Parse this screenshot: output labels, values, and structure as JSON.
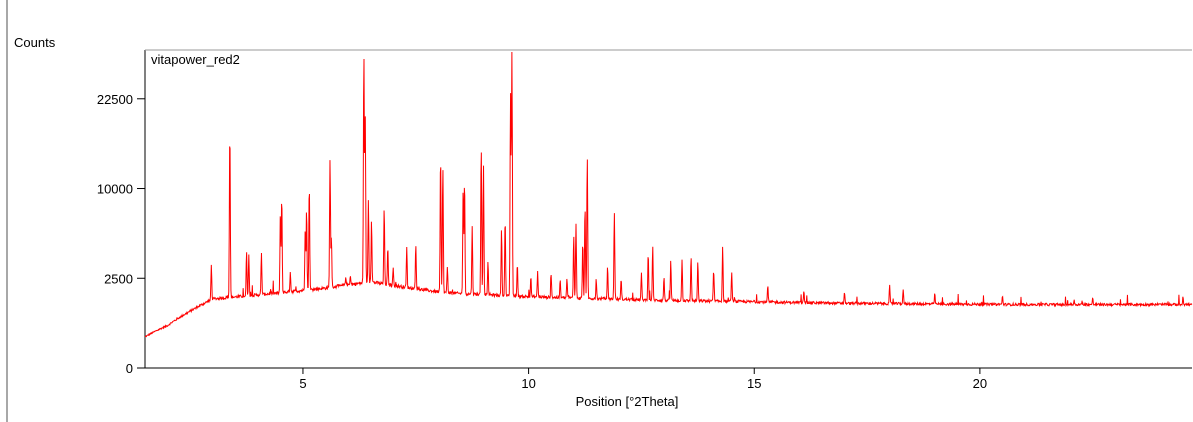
{
  "chart_data": {
    "type": "line",
    "title": "",
    "series_label": "vitapower_red2",
    "ylabel": "Counts",
    "xlabel": "Position [°2Theta]",
    "x_tick_labels": [
      "5",
      "10",
      "15",
      "20"
    ],
    "x_ticks": [
      5,
      10,
      15,
      20
    ],
    "y_tick_labels": [
      "0",
      "2500",
      "10000",
      "22500"
    ],
    "y_ticks": [
      0,
      2500,
      10000,
      22500
    ],
    "y_scale": "sqrt",
    "xlim": [
      1.5,
      24.7
    ],
    "ylim": [
      0,
      31000
    ],
    "grid": false,
    "line_color": "#ff0000",
    "background": [
      [
        1.5,
        300
      ],
      [
        2.0,
        560
      ],
      [
        2.5,
        1000
      ],
      [
        3.0,
        1480
      ],
      [
        3.5,
        1570
      ],
      [
        4.0,
        1660
      ],
      [
        4.5,
        1760
      ],
      [
        5.0,
        1870
      ],
      [
        5.5,
        1980
      ],
      [
        6.0,
        2150
      ],
      [
        6.5,
        2300
      ],
      [
        7.0,
        2120
      ],
      [
        7.5,
        1950
      ],
      [
        8.0,
        1800
      ],
      [
        8.5,
        1720
      ],
      [
        9.0,
        1680
      ],
      [
        9.5,
        1620
      ],
      [
        10.0,
        1580
      ],
      [
        11.0,
        1520
      ],
      [
        12.0,
        1470
      ],
      [
        13.0,
        1420
      ],
      [
        14.0,
        1390
      ],
      [
        15.0,
        1360
      ],
      [
        16.0,
        1330
      ],
      [
        17.0,
        1300
      ],
      [
        18.0,
        1290
      ],
      [
        19.0,
        1270
      ],
      [
        20.0,
        1260
      ],
      [
        21.0,
        1250
      ],
      [
        22.0,
        1250
      ],
      [
        23.0,
        1250
      ],
      [
        24.7,
        1250
      ]
    ],
    "peaks": [
      [
        2.97,
        3300
      ],
      [
        3.38,
        17500
      ],
      [
        3.75,
        4200
      ],
      [
        3.8,
        4000
      ],
      [
        4.08,
        4100
      ],
      [
        4.5,
        7500
      ],
      [
        4.53,
        9200
      ],
      [
        4.72,
        2900
      ],
      [
        5.05,
        6000
      ],
      [
        5.08,
        7900
      ],
      [
        5.14,
        10400
      ],
      [
        5.6,
        13500
      ],
      [
        5.63,
        5400
      ],
      [
        5.95,
        2600
      ],
      [
        6.05,
        2700
      ],
      [
        6.35,
        31000
      ],
      [
        6.38,
        20000
      ],
      [
        6.45,
        8700
      ],
      [
        6.52,
        6500
      ],
      [
        6.8,
        8000
      ],
      [
        6.88,
        4500
      ],
      [
        7.0,
        3200
      ],
      [
        7.3,
        4500
      ],
      [
        7.5,
        4800
      ],
      [
        8.05,
        13800
      ],
      [
        8.1,
        12500
      ],
      [
        8.2,
        3200
      ],
      [
        8.55,
        10000
      ],
      [
        8.58,
        11000
      ],
      [
        8.75,
        6200
      ],
      [
        8.95,
        15300
      ],
      [
        9.0,
        12800
      ],
      [
        9.1,
        3500
      ],
      [
        9.4,
        6000
      ],
      [
        9.48,
        7000
      ],
      [
        9.6,
        23500
      ],
      [
        9.63,
        31000
      ],
      [
        9.75,
        3400
      ],
      [
        10.05,
        2600
      ],
      [
        10.2,
        2900
      ],
      [
        10.5,
        2700
      ],
      [
        10.7,
        2400
      ],
      [
        10.85,
        2500
      ],
      [
        11.0,
        5500
      ],
      [
        11.05,
        6500
      ],
      [
        11.2,
        5000
      ],
      [
        11.25,
        8200
      ],
      [
        11.3,
        13800
      ],
      [
        11.5,
        2300
      ],
      [
        11.75,
        3200
      ],
      [
        11.9,
        7500
      ],
      [
        12.05,
        2500
      ],
      [
        12.5,
        2800
      ],
      [
        12.65,
        4200
      ],
      [
        12.75,
        4600
      ],
      [
        13.0,
        2600
      ],
      [
        13.15,
        3600
      ],
      [
        13.4,
        3700
      ],
      [
        13.6,
        3900
      ],
      [
        13.75,
        3500
      ],
      [
        14.1,
        3000
      ],
      [
        14.3,
        4600
      ],
      [
        14.5,
        2900
      ],
      [
        15.3,
        2100
      ],
      [
        16.1,
        1900
      ],
      [
        17.0,
        1800
      ],
      [
        18.0,
        2100
      ],
      [
        18.3,
        1900
      ],
      [
        19.0,
        1700
      ],
      [
        20.5,
        1600
      ],
      [
        22.5,
        1500
      ],
      [
        24.5,
        1600
      ]
    ]
  }
}
